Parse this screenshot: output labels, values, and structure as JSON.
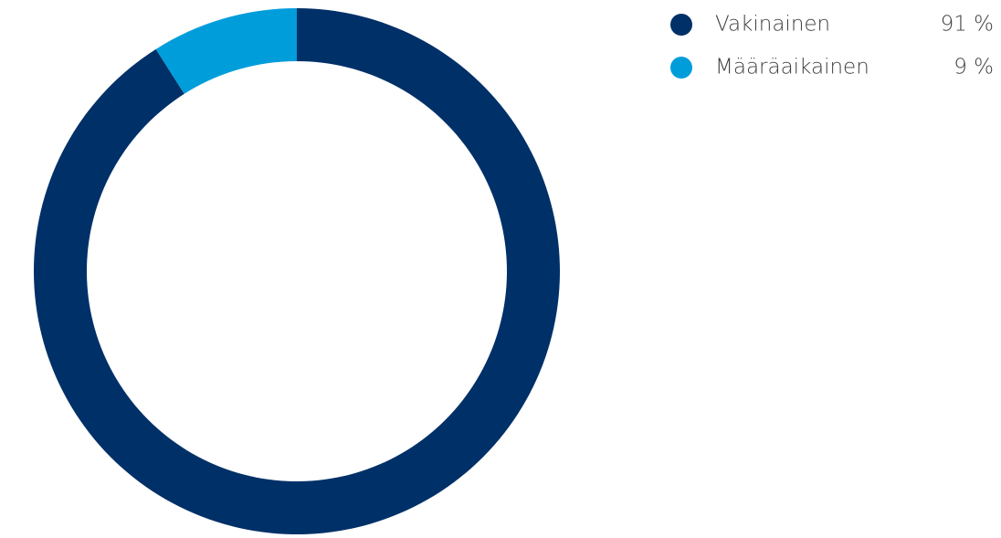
{
  "chart_data": {
    "type": "pie",
    "donut": true,
    "categories": [
      "Vakinainen",
      "Määräaikainen"
    ],
    "values": [
      91,
      9
    ],
    "value_labels": [
      "91 %",
      "9 %"
    ],
    "colors": [
      "#003068",
      "#009ddb"
    ]
  }
}
